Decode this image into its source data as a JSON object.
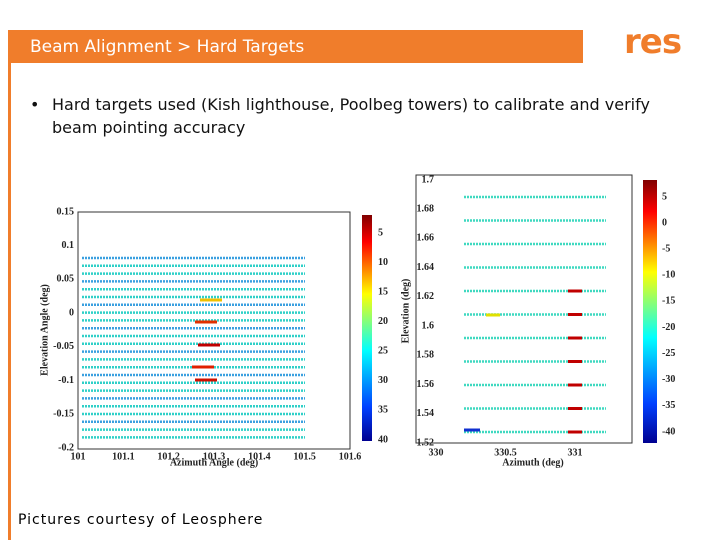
{
  "header": {
    "title": "Beam Alignment > Hard Targets",
    "logo": "res"
  },
  "bullets": [
    "Hard targets used (Kish lighthouse, Poolbeg towers) to calibrate and verify beam pointing accuracy"
  ],
  "figures": [
    {
      "y_label": "Elevation Angle (deg)",
      "x_label": "Azimuth Angle (deg)",
      "xticks": [
        "101",
        "101.1",
        "101.2",
        "101.3",
        "101.4",
        "101.5",
        "101.6"
      ],
      "yticks": [
        "0.15",
        "0.1",
        "0.05",
        "0",
        "-0.05",
        "-0.1",
        "-0.15",
        "-0.2"
      ],
      "colorbar_ticks": [
        "5",
        "10",
        "15",
        "20",
        "25",
        "30",
        "35",
        "40"
      ]
    },
    {
      "y_label": "Elevation (deg)",
      "x_label": "Azimuth (deg)",
      "xticks": [
        "330",
        "330.5",
        "331"
      ],
      "yticks": [
        "1.7",
        "1.68",
        "1.66",
        "1.64",
        "1.62",
        "1.6",
        "1.58",
        "1.56",
        "1.54",
        "1.52"
      ],
      "colorbar_ticks": [
        "5",
        "0",
        "-5",
        "-10",
        "-15",
        "-20",
        "-25",
        "-30",
        "-35",
        "-40"
      ]
    }
  ],
  "caption": "Pictures courtesy of Leosphere"
}
